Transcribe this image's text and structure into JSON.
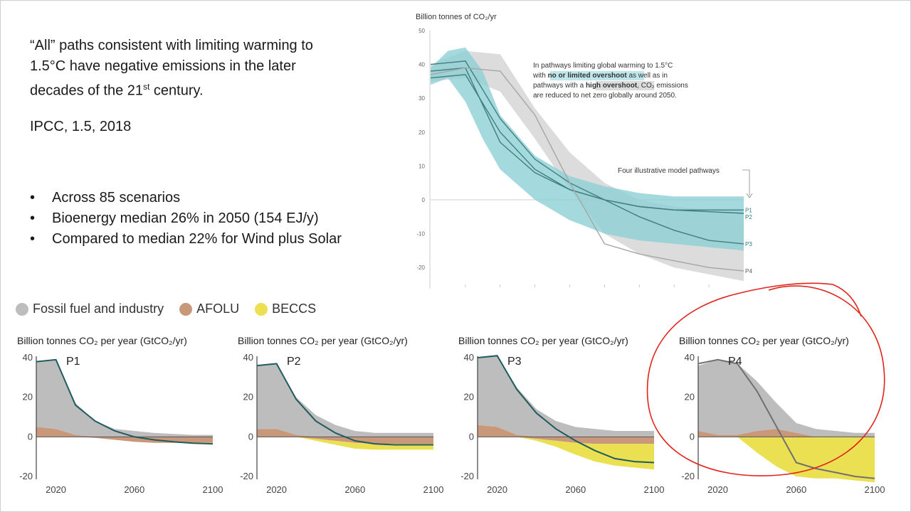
{
  "slide": {
    "quote_lines": [
      "“All” paths consistent with limiting warming to",
      "1.5°C have negative emissions in the later",
      "decades of the 21"
    ],
    "quote_sup": "st",
    "quote_tail": " century.",
    "source": "IPCC, 1.5, 2018",
    "bullets": [
      "Across 85 scenarios",
      "Bioenergy median 26% in 2050 (154 EJ/y)",
      "Compared to median 22% for Wind plus Solar"
    ]
  },
  "legend": [
    {
      "label": "Fossil fuel and industry",
      "color": "#bdbdbd"
    },
    {
      "label": "AFOLU",
      "color": "#c9987a"
    },
    {
      "label": "BECCS",
      "color": "#ebdf52"
    }
  ],
  "chart_data": [
    {
      "type": "area",
      "ylabel": "Billion tonnes of CO₂/yr",
      "ylim": [
        -25,
        50
      ],
      "yticks": [
        50,
        40,
        30,
        20,
        10,
        0,
        -10,
        -20
      ],
      "xlim": [
        2010,
        2100
      ],
      "annotation_parts": [
        {
          "text": "In pathways limiting global warming to 1.5°C",
          "hl": null
        },
        {
          "text": "with ",
          "hl": null
        },
        {
          "text": "no or limited overshoot",
          "hl": "blue"
        },
        {
          "text": " as well as in",
          "hl": null
        },
        {
          "text": "pathways with a ",
          "hl": null
        },
        {
          "text": "high overshoot",
          "hl": "gray"
        },
        {
          "text": ", CO₂ emissions",
          "hl": null
        },
        {
          "text": "are reduced to net zero globally around 2050.",
          "hl": null
        }
      ],
      "pathways_label": "Four illustrative model pathways",
      "colors": {
        "band_high": "#d6d6d6",
        "band_low": "#8dcfd6",
        "line": "#3f7f80",
        "line_p4": "#a6a6a6"
      },
      "band_high_overshoot": {
        "x": [
          2010,
          2020,
          2030,
          2040,
          2050,
          2060,
          2070,
          2080,
          2090,
          2100
        ],
        "upper": [
          40,
          44,
          43,
          27,
          14,
          5,
          0,
          -2,
          -3,
          -3
        ],
        "lower": [
          35,
          36,
          32,
          18,
          3,
          -10,
          -16,
          -20,
          -22,
          -24
        ]
      },
      "band_low_overshoot": {
        "x": [
          2010,
          2015,
          2020,
          2025,
          2030,
          2040,
          2050,
          2060,
          2070,
          2080,
          2090,
          2100
        ],
        "upper": [
          39,
          44,
          45,
          38,
          25,
          13,
          7,
          4,
          2,
          1,
          1,
          1
        ],
        "lower": [
          34,
          36,
          29,
          18,
          9,
          0,
          -6,
          -10,
          -12,
          -13,
          -14,
          -15
        ]
      },
      "series": [
        {
          "name": "P1",
          "x": [
            2010,
            2020,
            2030,
            2040,
            2050,
            2060,
            2070,
            2080,
            2090,
            2100
          ],
          "values": [
            38,
            39,
            17,
            8,
            3,
            0,
            -2,
            -3,
            -3.5,
            -4
          ]
        },
        {
          "name": "P2",
          "x": [
            2010,
            2020,
            2030,
            2040,
            2050,
            2060,
            2070,
            2080,
            2090,
            2100
          ],
          "values": [
            36,
            37,
            20,
            9,
            3,
            0,
            -2,
            -3,
            -3,
            -3
          ]
        },
        {
          "name": "P3",
          "x": [
            2010,
            2020,
            2030,
            2040,
            2050,
            2060,
            2070,
            2080,
            2090,
            2100
          ],
          "values": [
            40,
            41,
            24,
            12,
            5,
            0,
            -5,
            -9,
            -12,
            -13
          ]
        },
        {
          "name": "P4",
          "x": [
            2010,
            2020,
            2030,
            2040,
            2050,
            2060,
            2070,
            2080,
            2090,
            2100
          ],
          "values": [
            37,
            39,
            38,
            25,
            5,
            -13,
            -16,
            -18,
            -20,
            -21
          ]
        }
      ]
    },
    {
      "type": "area",
      "title": "Billion tonnes CO₂ per year (GtCO₂/yr)",
      "label": "P1",
      "ylim": [
        -20,
        40
      ],
      "yticks": [
        40,
        20,
        0,
        -20
      ],
      "xticks": [
        2020,
        2060,
        2100
      ],
      "xlim": [
        2010,
        2100
      ],
      "x": [
        2010,
        2020,
        2030,
        2040,
        2050,
        2060,
        2070,
        2080,
        2090,
        2100
      ],
      "fossil": [
        38,
        39,
        17,
        8,
        4,
        3,
        2,
        1.5,
        1,
        1
      ],
      "afolu": [
        5,
        4,
        1,
        -0.5,
        -1.5,
        -2.5,
        -3,
        -3,
        -3,
        -3
      ],
      "beccs": [
        0,
        0,
        0,
        0,
        0,
        0,
        0,
        0,
        -0.3,
        -0.5
      ],
      "net": [
        38,
        39,
        16,
        8,
        3,
        0,
        -1.5,
        -2.5,
        -3.2,
        -3.5
      ]
    },
    {
      "type": "area",
      "title": "Billion tonnes CO₂ per year (GtCO₂/yr)",
      "label": "P2",
      "ylim": [
        -20,
        40
      ],
      "yticks": [
        40,
        20,
        0,
        -20
      ],
      "xticks": [
        2020,
        2060,
        2100
      ],
      "xlim": [
        2010,
        2100
      ],
      "x": [
        2010,
        2020,
        2030,
        2040,
        2050,
        2060,
        2070,
        2080,
        2090,
        2100
      ],
      "fossil": [
        36,
        37,
        20,
        11,
        6,
        3,
        2,
        2,
        2,
        2
      ],
      "afolu": [
        4,
        4,
        1,
        -1,
        -2,
        -3,
        -3.5,
        -3.5,
        -3.5,
        -3.5
      ],
      "beccs": [
        0,
        0,
        0,
        -1,
        -2,
        -3,
        -3,
        -3,
        -3,
        -3
      ],
      "net": [
        36,
        37,
        19,
        8,
        2,
        -2,
        -3.5,
        -4,
        -4,
        -4
      ]
    },
    {
      "type": "area",
      "title": "Billion tonnes CO₂ per year (GtCO₂/yr)",
      "label": "P3",
      "ylim": [
        -20,
        40
      ],
      "yticks": [
        40,
        20,
        0,
        -20
      ],
      "xticks": [
        2020,
        2060,
        2100
      ],
      "xlim": [
        2010,
        2100
      ],
      "x": [
        2010,
        2020,
        2030,
        2040,
        2050,
        2060,
        2070,
        2080,
        2090,
        2100
      ],
      "fossil": [
        40,
        41,
        25,
        14,
        8,
        5,
        4,
        3,
        3,
        3
      ],
      "afolu": [
        6,
        5,
        1,
        -1,
        -2,
        -3,
        -3.5,
        -3.5,
        -3.5,
        -3.5
      ],
      "beccs": [
        0,
        0,
        0,
        -1,
        -3,
        -6,
        -9,
        -11,
        -12,
        -13
      ],
      "net": [
        40,
        41,
        24,
        12,
        4,
        -2,
        -7,
        -11,
        -12.5,
        -13
      ]
    },
    {
      "type": "area",
      "title": "Billion tonnes CO₂ per year (GtCO₂/yr)",
      "label": "P4",
      "ylim": [
        -20,
        40
      ],
      "yticks": [
        40,
        20,
        0,
        -20
      ],
      "xticks": [
        2020,
        2060,
        2100
      ],
      "xlim": [
        2010,
        2100
      ],
      "x": [
        2010,
        2020,
        2030,
        2040,
        2050,
        2060,
        2070,
        2080,
        2090,
        2100
      ],
      "fossil": [
        36,
        39,
        37,
        28,
        17,
        7,
        4,
        3,
        2,
        2
      ],
      "afolu": [
        3,
        1,
        1,
        3,
        4,
        2,
        0,
        0,
        0,
        0
      ],
      "beccs": [
        0,
        0,
        0,
        -8,
        -15,
        -20,
        -21,
        -21,
        -22,
        -23
      ],
      "net": [
        37,
        39,
        37,
        23,
        5,
        -13,
        -16,
        -18,
        -20,
        -21
      ]
    }
  ]
}
